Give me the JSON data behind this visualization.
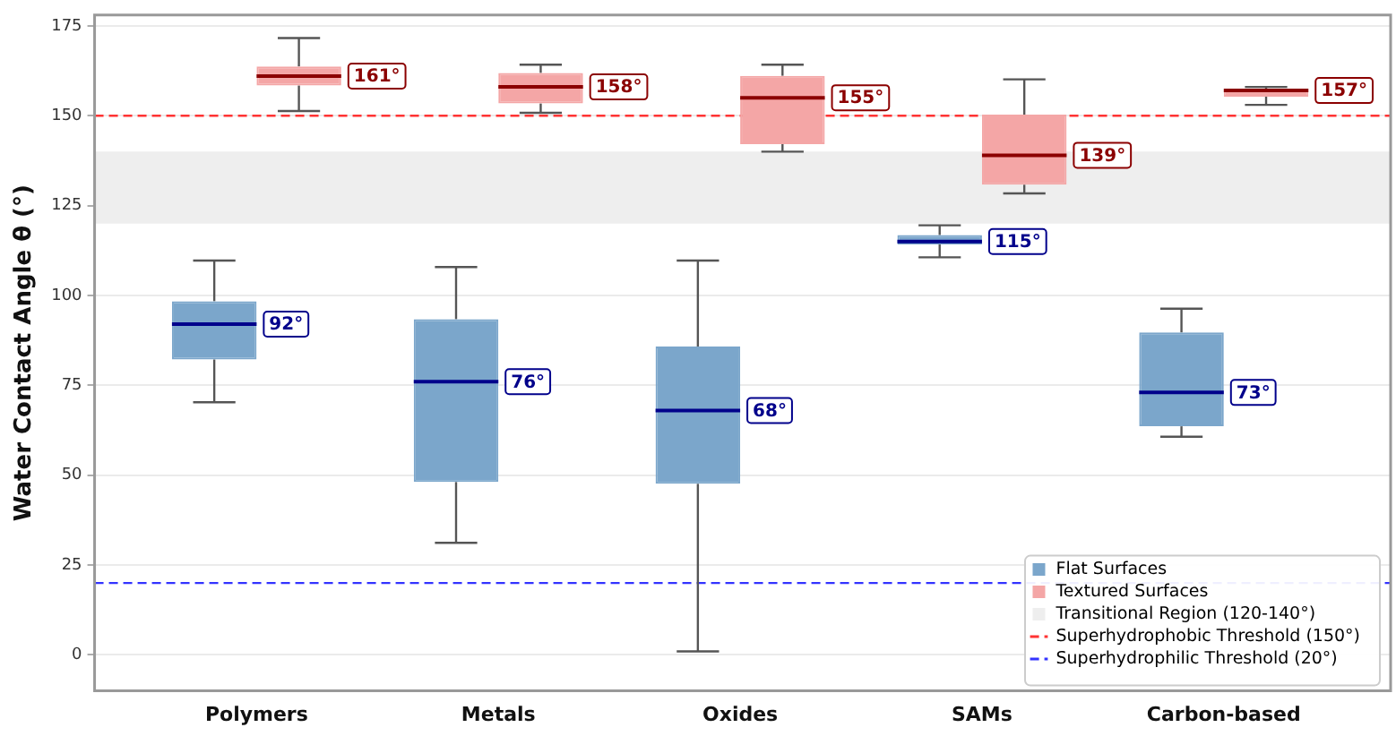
{
  "chart_data": {
    "type": "box",
    "ylabel": "Water Contact Angle θ (°)",
    "categories": [
      "Polymers",
      "Metals",
      "Oxides",
      "SAMs",
      "Carbon-based"
    ],
    "ylim": [
      -10,
      178
    ],
    "yticks": [
      0,
      25,
      50,
      75,
      100,
      125,
      150,
      175
    ],
    "grid": "y",
    "legend": "bottom right",
    "series": [
      {
        "name": "Flat Surfaces",
        "color": "#7ba6cb",
        "value_labels": [
          "92°",
          "76°",
          "68°",
          "115°",
          "73°"
        ],
        "boxes": [
          {
            "low": 70.3,
            "q1": 82.2,
            "median": 92,
            "q3": 98.4,
            "high": 109.7
          },
          {
            "low": 31.2,
            "q1": 48.1,
            "median": 76,
            "q3": 93.4,
            "high": 107.9
          },
          {
            "low": 1,
            "q1": 47.6,
            "median": 68,
            "q3": 85.8,
            "high": 109.7
          },
          {
            "low": 110.6,
            "q1": 114.2,
            "median": 115,
            "q3": 116.8,
            "high": 119.5
          },
          {
            "low": 60.7,
            "q1": 63.6,
            "median": 73,
            "q3": 89.7,
            "high": 96.3
          }
        ]
      },
      {
        "name": "Textured Surfaces",
        "color": "#f4a6a6",
        "value_labels": [
          "161°",
          "158°",
          "155°",
          "139°",
          "157°"
        ],
        "boxes": [
          {
            "low": 151.3,
            "q1": 158.4,
            "median": 161,
            "q3": 163.7,
            "high": 171.6
          },
          {
            "low": 150.8,
            "q1": 153.4,
            "median": 158,
            "q3": 161.9,
            "high": 164.2
          },
          {
            "low": 140,
            "q1": 142.1,
            "median": 155,
            "q3": 161.1,
            "high": 164.2
          },
          {
            "low": 128.4,
            "q1": 130.8,
            "median": 139,
            "q3": 150.3,
            "high": 160.1
          },
          {
            "low": 153,
            "q1": 155.3,
            "median": 157,
            "q3": 157.2,
            "high": 158
          }
        ]
      }
    ],
    "bands": [
      {
        "axis": "y",
        "from": 120,
        "to": 140,
        "label": "Transitional Region (120-140°)",
        "color": "#eeeeee"
      }
    ],
    "ref_lines": [
      {
        "axis": "y",
        "value": 150,
        "label": "Superhydrophobic Threshold (150°)",
        "color": "#ff3333",
        "line_style": "dashed"
      },
      {
        "axis": "y",
        "value": 20,
        "label": "Superhydrophilic Threshold (20°)",
        "color": "#3333ff",
        "line_style": "dashed"
      }
    ]
  }
}
